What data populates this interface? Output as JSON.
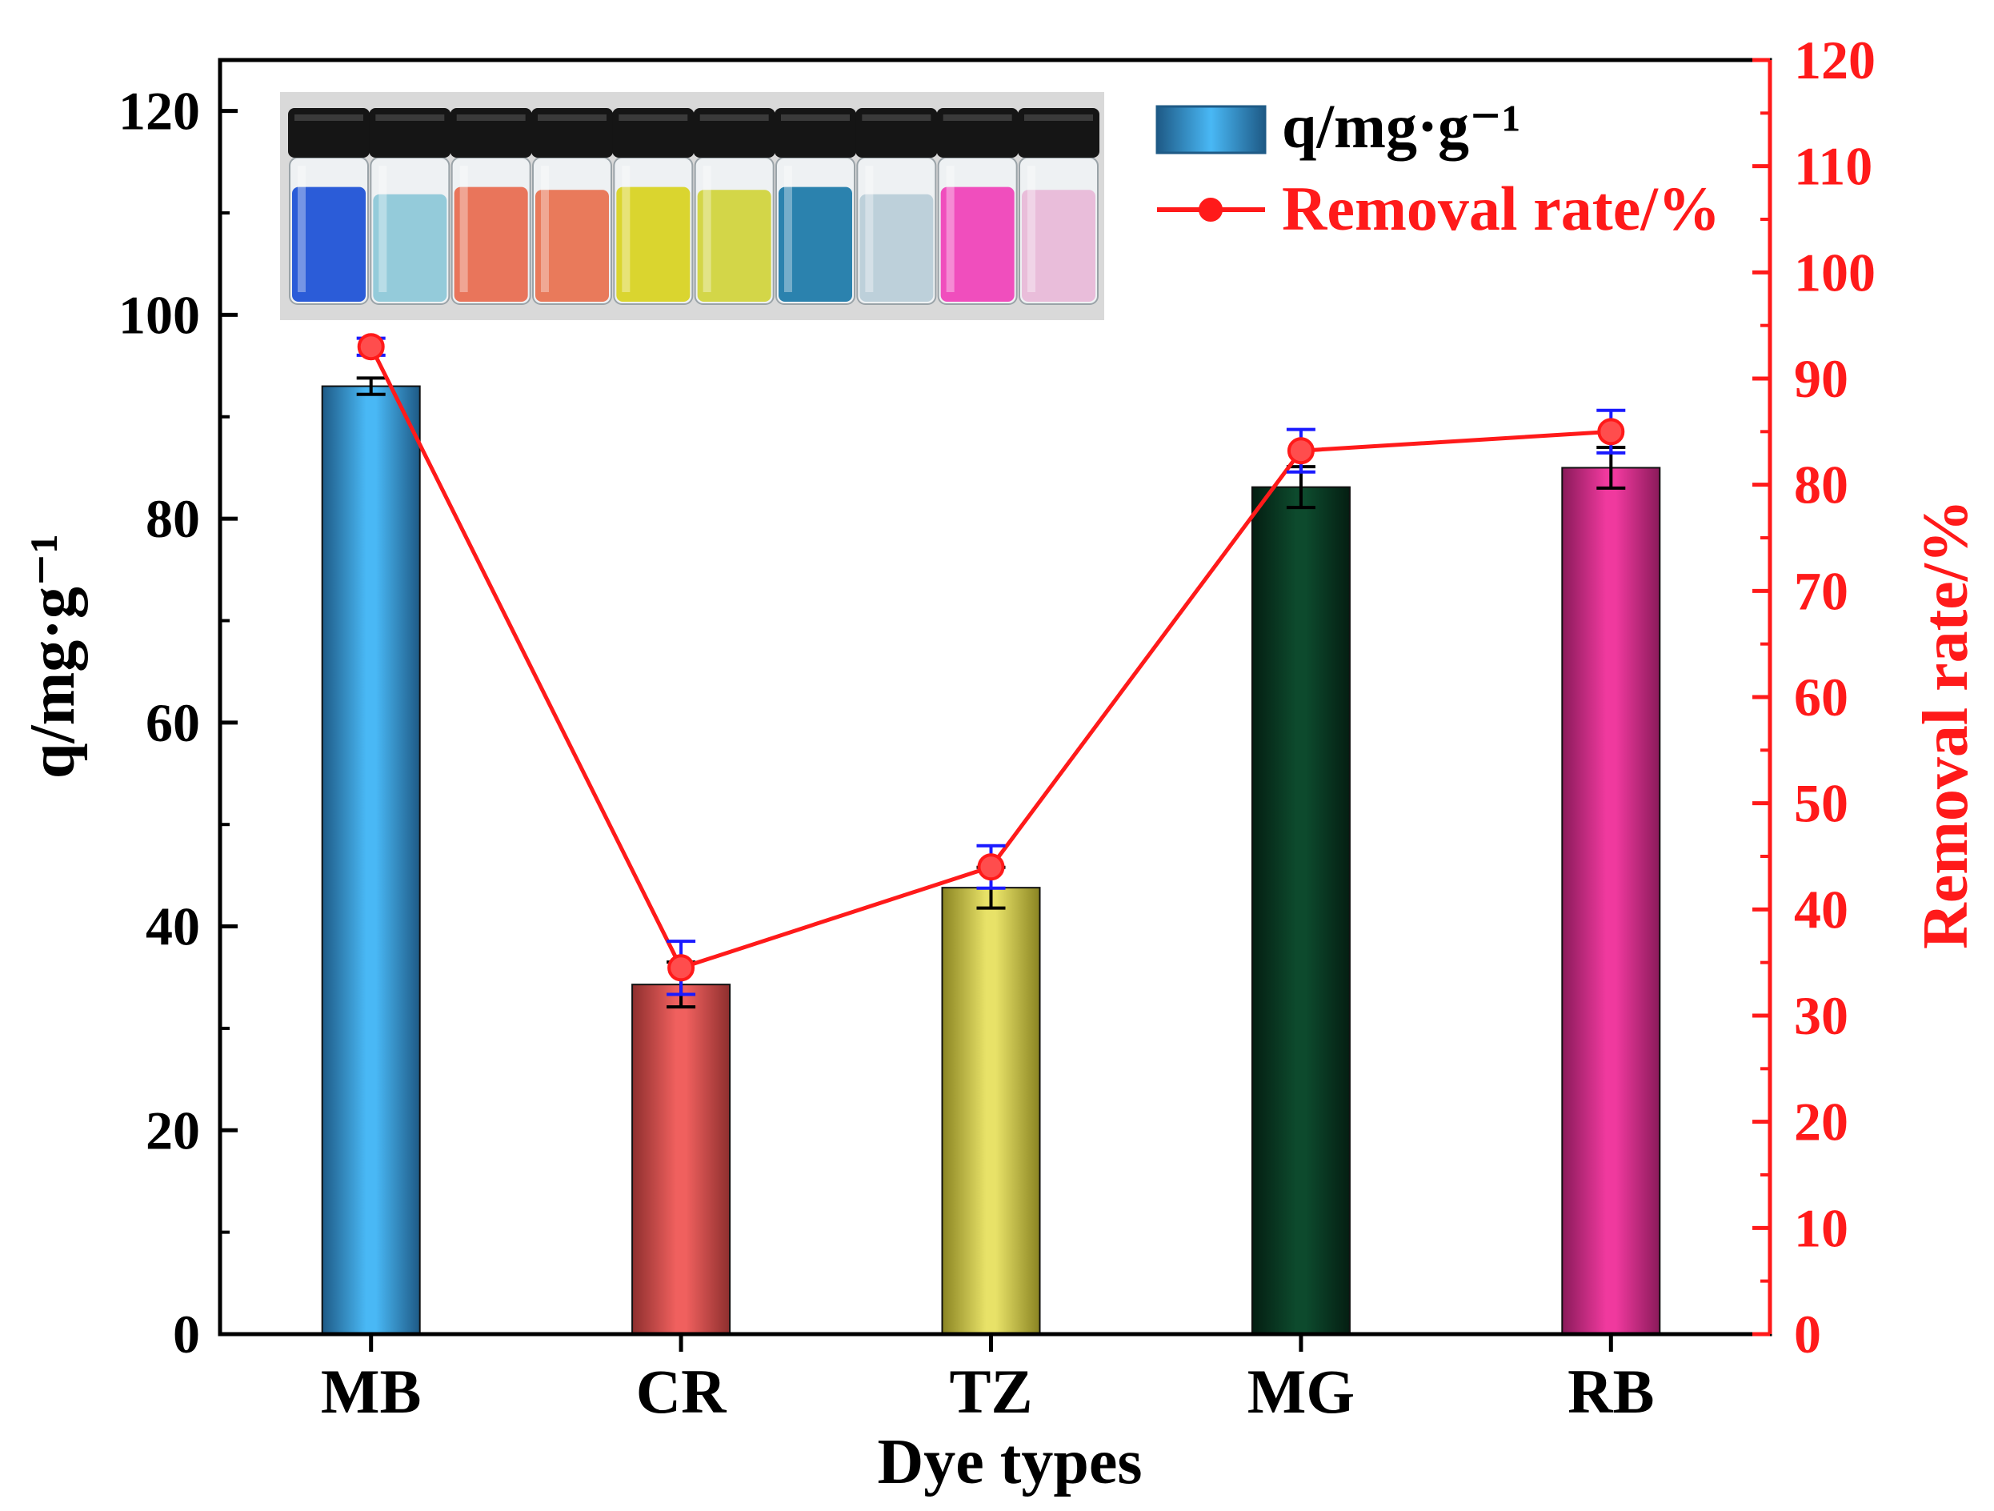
{
  "chart_data": {
    "type": "bar",
    "xlabel": "Dye types",
    "categories": [
      "MB",
      "CR",
      "TZ",
      "MG",
      "RB"
    ],
    "y_left": {
      "label": "q/mg·g⁻¹",
      "range": [
        0,
        125
      ],
      "ticks": [
        0,
        20,
        40,
        60,
        80,
        100,
        120
      ]
    },
    "y_right": {
      "label": "Removal rate/%",
      "range": [
        0,
        120
      ],
      "ticks": [
        0,
        10,
        20,
        30,
        40,
        50,
        60,
        70,
        80,
        90,
        100,
        110,
        120
      ],
      "color": "#ff1a1a"
    },
    "series": [
      {
        "name": "q/mg·g⁻¹",
        "kind": "bar",
        "axis": "left",
        "values": [
          93,
          34.3,
          43.8,
          83.1,
          85
        ],
        "errors": [
          0.8,
          2.2,
          2.0,
          2.0,
          2.0
        ],
        "colors": [
          "#49b8f5",
          "#f0605e",
          "#e8e268",
          "#0d4a2d",
          "#f0399e"
        ],
        "edge_colors": [
          "#1e5a86",
          "#8e2f2e",
          "#8a8422",
          "#041e12",
          "#8a1a5a"
        ]
      },
      {
        "name": "Removal rate/%",
        "kind": "line",
        "axis": "right",
        "values": [
          93,
          34.5,
          44,
          83.2,
          85
        ],
        "errors": [
          0.8,
          2.5,
          2.0,
          2.0,
          2.0
        ],
        "color": "#ff1a1a",
        "error_color": "#1a1aff"
      }
    ],
    "legend": {
      "position": "top-right",
      "entries": [
        "q/mg·g⁻¹",
        "Removal rate/%"
      ]
    },
    "inset_image": {
      "position": "top-left",
      "vials": [
        {
          "liquid": "#1a4fd6",
          "fill": 0.8
        },
        {
          "liquid": "#8cc8d8",
          "fill": 0.75
        },
        {
          "liquid": "#e86a4e",
          "fill": 0.8
        },
        {
          "liquid": "#e8704e",
          "fill": 0.78
        },
        {
          "liquid": "#d8d21e",
          "fill": 0.8
        },
        {
          "liquid": "#d0d43a",
          "fill": 0.78
        },
        {
          "liquid": "#1a78a8",
          "fill": 0.8
        },
        {
          "liquid": "#b8cdd8",
          "fill": 0.75
        },
        {
          "liquid": "#f040b8",
          "fill": 0.8
        },
        {
          "liquid": "#e8b8d8",
          "fill": 0.78
        }
      ]
    }
  }
}
